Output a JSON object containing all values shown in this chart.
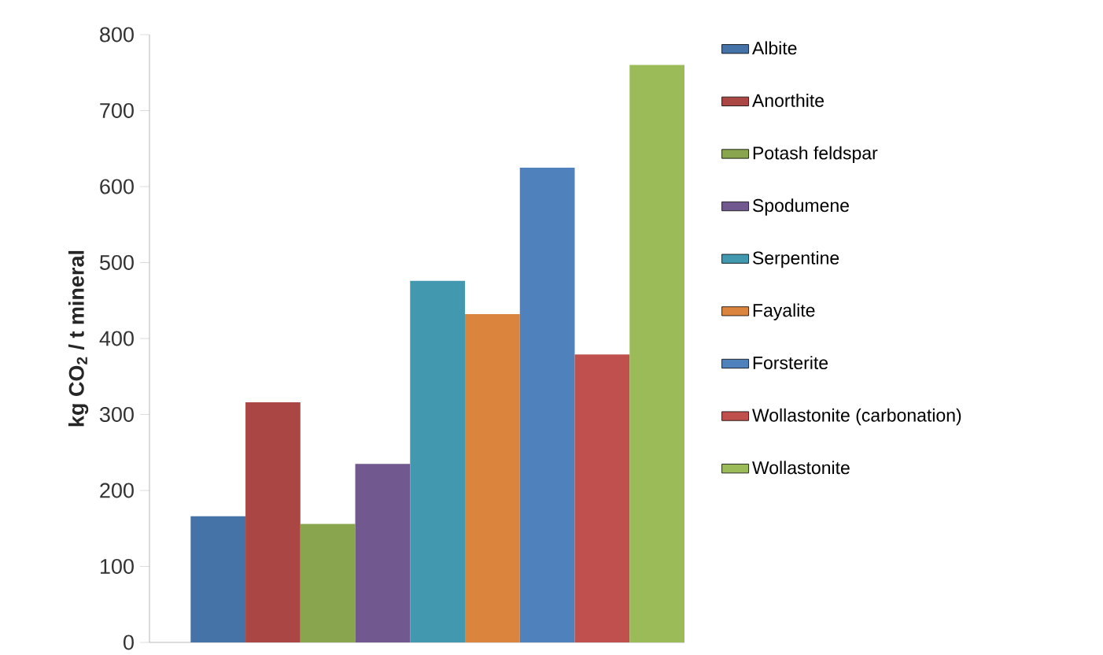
{
  "chart_data": {
    "type": "bar",
    "ylabel": "**kg CO$_{2}$ / t mineral**",
    "categories": [
      null
    ],
    "series": [
      {
        "name": "Albite",
        "color": "#4572a7",
        "values": [
          166
        ]
      },
      {
        "name": "Anorthite",
        "color": "#aa4643",
        "values": [
          316
        ]
      },
      {
        "name": "Potash feldspar",
        "color": "#89a54e",
        "values": [
          156
        ]
      },
      {
        "name": "Spodumene",
        "color": "#71588f",
        "values": [
          235
        ]
      },
      {
        "name": "Serpentine",
        "color": "#4198af",
        "values": [
          476
        ]
      },
      {
        "name": "Fayalite",
        "color": "#db843d",
        "values": [
          432
        ]
      },
      {
        "name": "Forsterite",
        "color": "#4f81bd",
        "values": [
          625
        ]
      },
      {
        "name": "Wollastonite (carbonation)",
        "color": "#c0504d",
        "values": [
          379
        ]
      },
      {
        "name": "Wollastonite",
        "color": "#9bbb59",
        "values": [
          760
        ]
      }
    ],
    "ylim": [
      0,
      800
    ],
    "yticks": [
      0,
      100,
      200,
      300,
      400,
      500,
      600,
      700,
      800
    ],
    "grid": false,
    "legend": "right"
  }
}
